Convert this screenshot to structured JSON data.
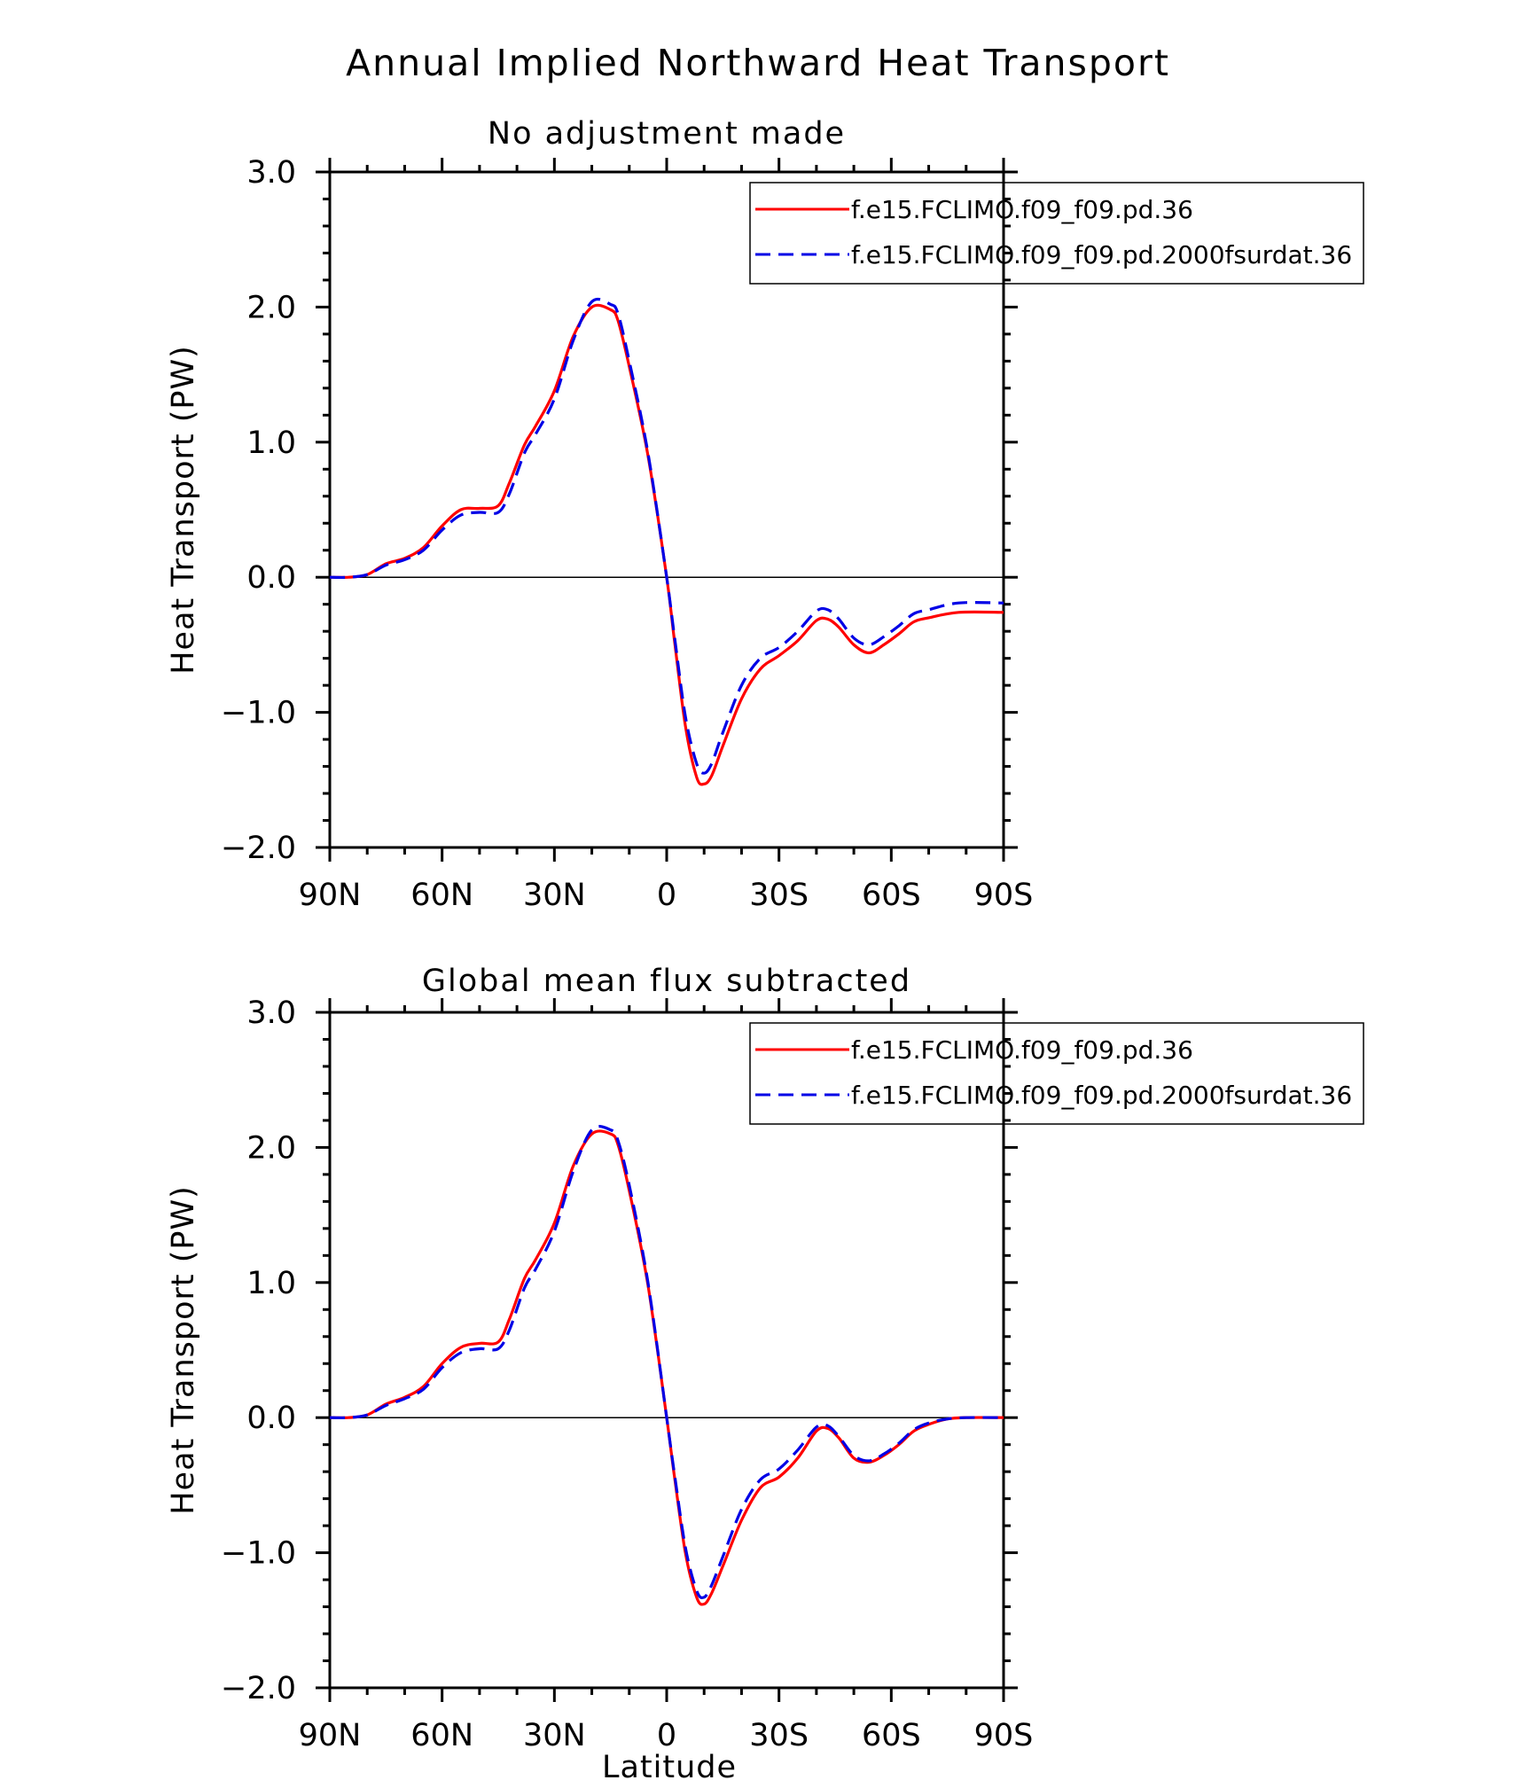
{
  "title": "Annual Implied Northward Heat Transport",
  "xlabel_bottom": "Latitude",
  "colors": {
    "series1": "#ff0000",
    "series2": "#0000e6"
  },
  "chart_data": [
    {
      "type": "line",
      "title": "No adjustment made",
      "xlabel": "",
      "ylabel": "Heat Transport (PW)",
      "xlim": [
        90,
        -90
      ],
      "ylim": [
        -2.0,
        3.0
      ],
      "x_ticks": [
        90,
        60,
        30,
        0,
        -30,
        -60,
        -90
      ],
      "x_tick_labels": [
        "90N",
        "60N",
        "30N",
        "0",
        "30S",
        "60S",
        "90S"
      ],
      "y_ticks": [
        -2.0,
        -1.0,
        0.0,
        1.0,
        2.0,
        3.0
      ],
      "y_tick_labels": [
        "−2.0",
        "−1.0",
        "0.0",
        "1.0",
        "2.0",
        "3.0"
      ],
      "legend_position": "top-right",
      "series": [
        {
          "name": "f.e15.FCLIMO.f09_f09.pd.36",
          "style": "solid",
          "x": [
            90,
            85,
            80,
            75,
            70,
            65,
            60,
            55,
            50,
            45,
            42,
            38,
            35,
            30,
            25,
            20,
            15,
            13,
            10,
            5,
            0,
            -2,
            -5,
            -8,
            -10,
            -12,
            -15,
            -20,
            -25,
            -30,
            -35,
            -40,
            -43,
            -46,
            -50,
            -54,
            -58,
            -62,
            -66,
            -70,
            -78,
            -90
          ],
          "values": [
            0.0,
            0.0,
            0.02,
            0.1,
            0.14,
            0.22,
            0.38,
            0.5,
            0.51,
            0.53,
            0.7,
            0.98,
            1.12,
            1.38,
            1.78,
            2.0,
            1.98,
            1.9,
            1.56,
            0.9,
            0.0,
            -0.45,
            -1.1,
            -1.48,
            -1.53,
            -1.47,
            -1.25,
            -0.9,
            -0.68,
            -0.58,
            -0.47,
            -0.32,
            -0.31,
            -0.37,
            -0.5,
            -0.56,
            -0.5,
            -0.42,
            -0.33,
            -0.3,
            -0.26,
            -0.26
          ]
        },
        {
          "name": "f.e15.FCLIMO.f09_f09.pd.2000fsurdat.36",
          "style": "dashed",
          "x": [
            90,
            85,
            80,
            75,
            70,
            65,
            60,
            55,
            50,
            45,
            42,
            38,
            35,
            30,
            25,
            20,
            15,
            13,
            10,
            5,
            0,
            -2,
            -5,
            -8,
            -10,
            -12,
            -15,
            -20,
            -25,
            -30,
            -35,
            -40,
            -43,
            -46,
            -50,
            -54,
            -58,
            -62,
            -66,
            -70,
            -78,
            -90
          ],
          "values": [
            0.0,
            0.0,
            0.02,
            0.09,
            0.13,
            0.2,
            0.35,
            0.46,
            0.48,
            0.48,
            0.62,
            0.92,
            1.06,
            1.32,
            1.75,
            2.04,
            2.02,
            1.95,
            1.6,
            0.92,
            0.0,
            -0.42,
            -1.03,
            -1.38,
            -1.45,
            -1.38,
            -1.15,
            -0.8,
            -0.6,
            -0.52,
            -0.4,
            -0.25,
            -0.24,
            -0.31,
            -0.45,
            -0.5,
            -0.44,
            -0.36,
            -0.27,
            -0.24,
            -0.19,
            -0.19
          ]
        }
      ]
    },
    {
      "type": "line",
      "title": "Global mean flux subtracted",
      "xlabel": "Latitude",
      "ylabel": "Heat Transport (PW)",
      "xlim": [
        90,
        -90
      ],
      "ylim": [
        -2.0,
        3.0
      ],
      "x_ticks": [
        90,
        60,
        30,
        0,
        -30,
        -60,
        -90
      ],
      "x_tick_labels": [
        "90N",
        "60N",
        "30N",
        "0",
        "30S",
        "60S",
        "90S"
      ],
      "y_ticks": [
        -2.0,
        -1.0,
        0.0,
        1.0,
        2.0,
        3.0
      ],
      "y_tick_labels": [
        "−2.0",
        "−1.0",
        "0.0",
        "1.0",
        "2.0",
        "3.0"
      ],
      "legend_position": "top-right",
      "series": [
        {
          "name": "f.e15.FCLIMO.f09_f09.pd.36",
          "style": "solid",
          "x": [
            90,
            85,
            80,
            75,
            70,
            65,
            60,
            55,
            50,
            45,
            42,
            38,
            35,
            30,
            25,
            20,
            15,
            13,
            10,
            5,
            0,
            -2,
            -5,
            -8,
            -10,
            -12,
            -15,
            -20,
            -25,
            -30,
            -35,
            -40,
            -43,
            -46,
            -50,
            -54,
            -58,
            -62,
            -66,
            -70,
            -75,
            -80,
            -90
          ],
          "values": [
            0.0,
            0.0,
            0.02,
            0.1,
            0.15,
            0.23,
            0.4,
            0.52,
            0.55,
            0.56,
            0.73,
            1.03,
            1.17,
            1.44,
            1.86,
            2.1,
            2.1,
            2.02,
            1.68,
            0.98,
            0.0,
            -0.42,
            -1.0,
            -1.33,
            -1.38,
            -1.3,
            -1.1,
            -0.76,
            -0.52,
            -0.44,
            -0.3,
            -0.1,
            -0.08,
            -0.15,
            -0.3,
            -0.33,
            -0.28,
            -0.2,
            -0.1,
            -0.05,
            -0.01,
            0.0,
            0.0
          ]
        },
        {
          "name": "f.e15.FCLIMO.f09_f09.pd.2000fsurdat.36",
          "style": "dashed",
          "x": [
            90,
            85,
            80,
            75,
            70,
            65,
            60,
            55,
            50,
            45,
            42,
            38,
            35,
            30,
            25,
            20,
            15,
            13,
            10,
            5,
            0,
            -2,
            -5,
            -8,
            -10,
            -12,
            -15,
            -20,
            -25,
            -30,
            -35,
            -40,
            -43,
            -46,
            -50,
            -54,
            -58,
            -62,
            -66,
            -70,
            -75,
            -80,
            -90
          ],
          "values": [
            0.0,
            0.0,
            0.02,
            0.09,
            0.14,
            0.21,
            0.37,
            0.48,
            0.51,
            0.51,
            0.65,
            0.96,
            1.1,
            1.38,
            1.82,
            2.13,
            2.13,
            2.05,
            1.72,
            1.0,
            0.0,
            -0.4,
            -0.96,
            -1.28,
            -1.33,
            -1.24,
            -1.03,
            -0.68,
            -0.46,
            -0.38,
            -0.24,
            -0.07,
            -0.06,
            -0.14,
            -0.28,
            -0.32,
            -0.27,
            -0.19,
            -0.09,
            -0.04,
            -0.01,
            0.0,
            0.0
          ]
        }
      ]
    }
  ]
}
